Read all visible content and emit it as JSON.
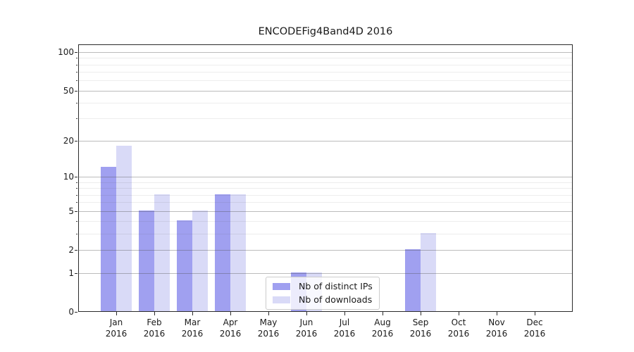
{
  "chart_data": {
    "type": "bar",
    "title": "ENCODEFig4Band4D 2016",
    "xlabel": "",
    "ylabel": "",
    "yscale": "log1p",
    "ylim": [
      0,
      115
    ],
    "yticks": [
      0,
      1,
      2,
      5,
      10,
      20,
      50,
      100
    ],
    "minor_yticks": [
      3,
      4,
      6,
      7,
      8,
      9,
      30,
      40,
      60,
      70,
      80,
      90
    ],
    "grid": "both",
    "categories": [
      "Jan",
      "Feb",
      "Mar",
      "Apr",
      "May",
      "Jun",
      "Jul",
      "Aug",
      "Sep",
      "Oct",
      "Nov",
      "Dec"
    ],
    "category_year": "2016",
    "series": [
      {
        "name": "Nb of distinct IPs",
        "color": "#a0a0f0",
        "values": [
          12,
          5,
          4,
          7,
          0,
          1,
          0,
          0,
          2,
          0,
          0,
          0
        ]
      },
      {
        "name": "Nb of downloads",
        "color": "#d9daf7",
        "values": [
          18,
          7,
          5,
          7,
          0,
          1,
          0,
          0,
          3,
          0,
          0,
          0
        ]
      }
    ],
    "legend": {
      "entries": [
        "Nb of distinct IPs",
        "Nb of downloads"
      ],
      "position": "bottom-center"
    }
  }
}
